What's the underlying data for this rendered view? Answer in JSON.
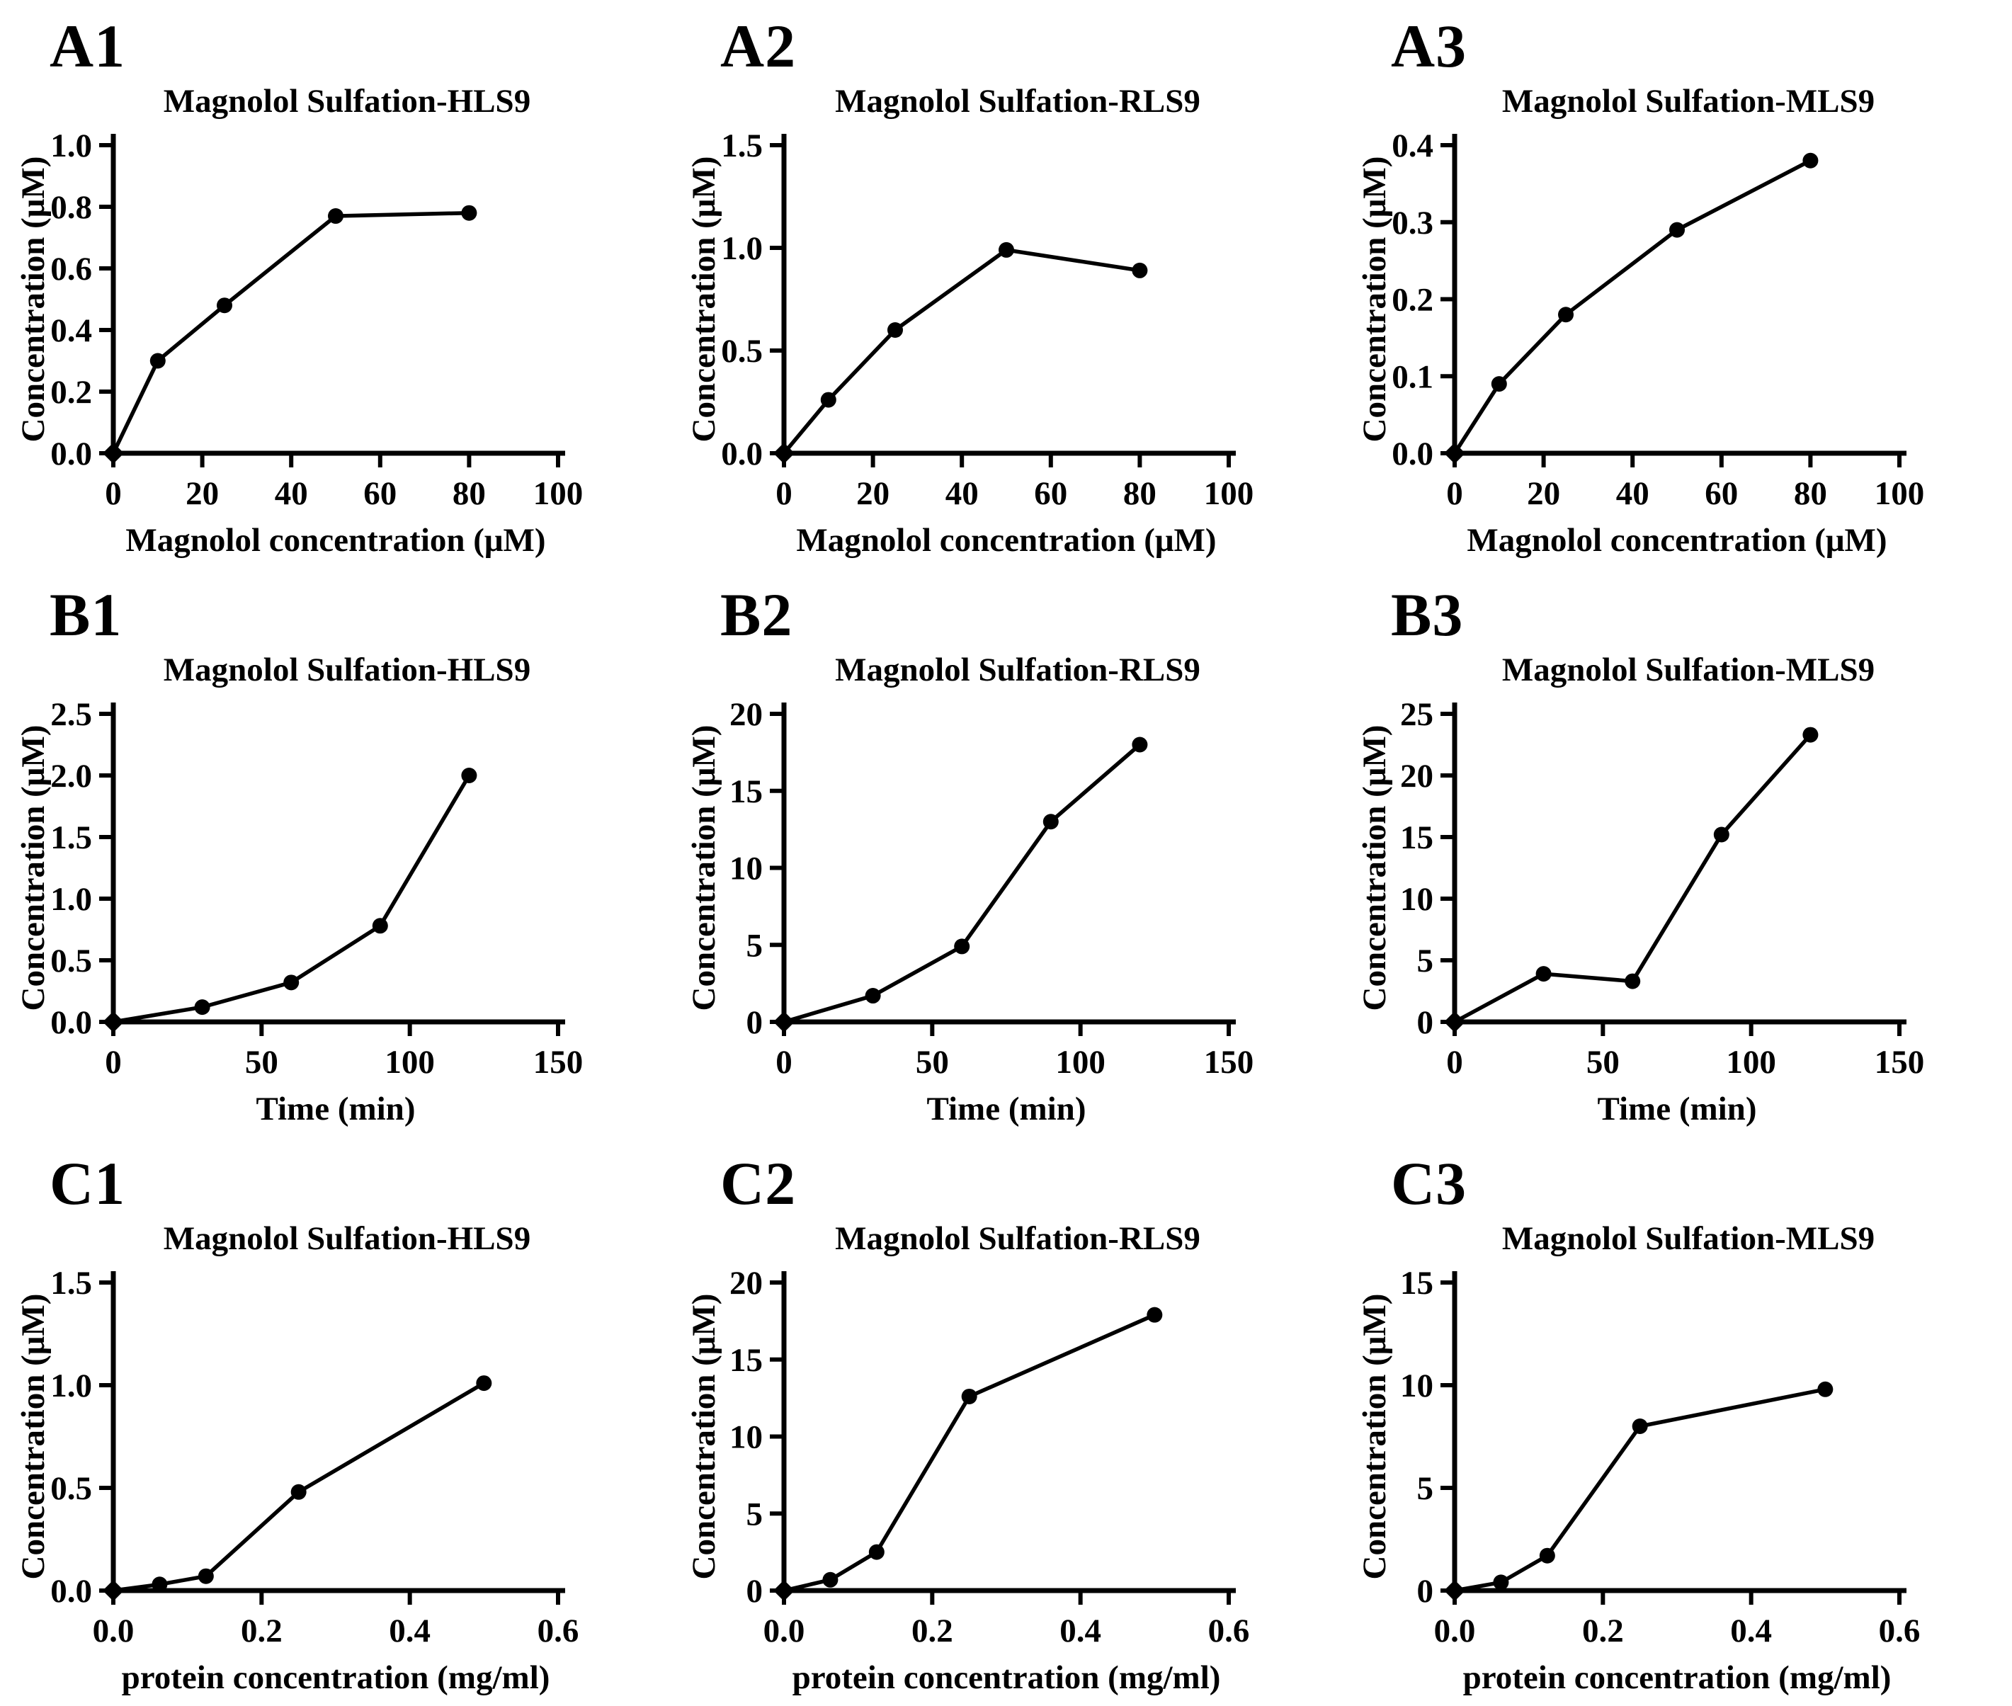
{
  "style": {
    "background": "#ffffff",
    "ink": "#000000"
  },
  "chart_data": [
    {
      "type": "line",
      "panel_label": "A1",
      "title": "Magnolol Sulfation-HLS9",
      "xlabel": "Magnolol concentration (μM)",
      "ylabel": "Concentration (μM)",
      "x": [
        0,
        10,
        25,
        50,
        80
      ],
      "y": [
        0.0,
        0.3,
        0.48,
        0.77,
        0.78
      ],
      "xlim": [
        0,
        100
      ],
      "ylim": [
        0,
        1.0
      ],
      "xtick_labels": [
        "0",
        "20",
        "40",
        "60",
        "80",
        "100"
      ],
      "ytick_labels": [
        "0.0",
        "0.2",
        "0.4",
        "0.6",
        "0.8",
        "1.0"
      ],
      "grid": false,
      "legend": "none"
    },
    {
      "type": "line",
      "panel_label": "A2",
      "title": "Magnolol Sulfation-RLS9",
      "xlabel": "Magnolol concentration (μM)",
      "ylabel": "Concentration (μM)",
      "x": [
        0,
        10,
        25,
        50,
        80
      ],
      "y": [
        0.0,
        0.26,
        0.6,
        0.99,
        0.89
      ],
      "xlim": [
        0,
        100
      ],
      "ylim": [
        0,
        1.5
      ],
      "xtick_labels": [
        "0",
        "20",
        "40",
        "60",
        "80",
        "100"
      ],
      "ytick_labels": [
        "0.0",
        "0.5",
        "1.0",
        "1.5"
      ],
      "grid": false,
      "legend": "none"
    },
    {
      "type": "line",
      "panel_label": "A3",
      "title": "Magnolol Sulfation-MLS9",
      "xlabel": "Magnolol concentration (μM)",
      "ylabel": "Concentration (μM)",
      "x": [
        0,
        10,
        25,
        50,
        80
      ],
      "y": [
        0.0,
        0.09,
        0.18,
        0.29,
        0.38
      ],
      "xlim": [
        0,
        100
      ],
      "ylim": [
        0,
        0.4
      ],
      "xtick_labels": [
        "0",
        "20",
        "40",
        "60",
        "80",
        "100"
      ],
      "ytick_labels": [
        "0.0",
        "0.1",
        "0.2",
        "0.3",
        "0.4"
      ],
      "grid": false,
      "legend": "none"
    },
    {
      "type": "line",
      "panel_label": "B1",
      "title": "Magnolol Sulfation-HLS9",
      "xlabel": "Time (min)",
      "ylabel": "Concentration (μM)",
      "x": [
        0,
        30,
        60,
        90,
        120
      ],
      "y": [
        0.0,
        0.12,
        0.32,
        0.78,
        2.0
      ],
      "xlim": [
        0,
        150
      ],
      "ylim": [
        0,
        2.5
      ],
      "xtick_labels": [
        "0",
        "50",
        "100",
        "150"
      ],
      "ytick_labels": [
        "0.0",
        "0.5",
        "1.0",
        "1.5",
        "2.0",
        "2.5"
      ],
      "grid": false,
      "legend": "none"
    },
    {
      "type": "line",
      "panel_label": "B2",
      "title": "Magnolol Sulfation-RLS9",
      "xlabel": "Time (min)",
      "ylabel": "Concentration (μM)",
      "x": [
        0,
        30,
        60,
        90,
        120
      ],
      "y": [
        0,
        1.7,
        4.9,
        13.0,
        18.0
      ],
      "xlim": [
        0,
        150
      ],
      "ylim": [
        0,
        20
      ],
      "xtick_labels": [
        "0",
        "50",
        "100",
        "150"
      ],
      "ytick_labels": [
        "0",
        "5",
        "10",
        "15",
        "20"
      ],
      "grid": false,
      "legend": "none"
    },
    {
      "type": "line",
      "panel_label": "B3",
      "title": "Magnolol Sulfation-MLS9",
      "xlabel": "Time (min)",
      "ylabel": "Concentration (μM)",
      "x": [
        0,
        30,
        60,
        90,
        120
      ],
      "y": [
        0,
        3.9,
        3.3,
        15.2,
        23.3
      ],
      "xlim": [
        0,
        150
      ],
      "ylim": [
        0,
        25
      ],
      "xtick_labels": [
        "0",
        "50",
        "100",
        "150"
      ],
      "ytick_labels": [
        "0",
        "5",
        "10",
        "15",
        "20",
        "25"
      ],
      "grid": false,
      "legend": "none"
    },
    {
      "type": "line",
      "panel_label": "C1",
      "title": "Magnolol Sulfation-HLS9",
      "xlabel": "protein concentration (mg/ml)",
      "ylabel": "Concentration (μM)",
      "x": [
        0,
        0.0625,
        0.125,
        0.25,
        0.5
      ],
      "y": [
        0.0,
        0.03,
        0.07,
        0.48,
        1.01
      ],
      "xlim": [
        0,
        0.6
      ],
      "ylim": [
        0,
        1.5
      ],
      "xtick_labels": [
        "0.0",
        "0.2",
        "0.4",
        "0.6"
      ],
      "ytick_labels": [
        "0.0",
        "0.5",
        "1.0",
        "1.5"
      ],
      "grid": false,
      "legend": "none"
    },
    {
      "type": "line",
      "panel_label": "C2",
      "title": "Magnolol Sulfation-RLS9",
      "xlabel": "protein concentration (mg/ml)",
      "ylabel": "Concentration (μM)",
      "x": [
        0,
        0.0625,
        0.125,
        0.25,
        0.5
      ],
      "y": [
        0,
        0.7,
        2.5,
        12.6,
        17.9
      ],
      "xlim": [
        0,
        0.6
      ],
      "ylim": [
        0,
        20
      ],
      "xtick_labels": [
        "0.0",
        "0.2",
        "0.4",
        "0.6"
      ],
      "ytick_labels": [
        "0",
        "5",
        "10",
        "15",
        "20"
      ],
      "grid": false,
      "legend": "none"
    },
    {
      "type": "line",
      "panel_label": "C3",
      "title": "Magnolol Sulfation-MLS9",
      "xlabel": "protein concentration (mg/ml)",
      "ylabel": "Concentration (μM)",
      "x": [
        0,
        0.0625,
        0.125,
        0.25,
        0.5
      ],
      "y": [
        0,
        0.4,
        1.7,
        8.0,
        9.8
      ],
      "xlim": [
        0,
        0.6
      ],
      "ylim": [
        0,
        15
      ],
      "xtick_labels": [
        "0.0",
        "0.2",
        "0.4",
        "0.6"
      ],
      "ytick_labels": [
        "0",
        "5",
        "10",
        "15"
      ],
      "grid": false,
      "legend": "none"
    }
  ]
}
